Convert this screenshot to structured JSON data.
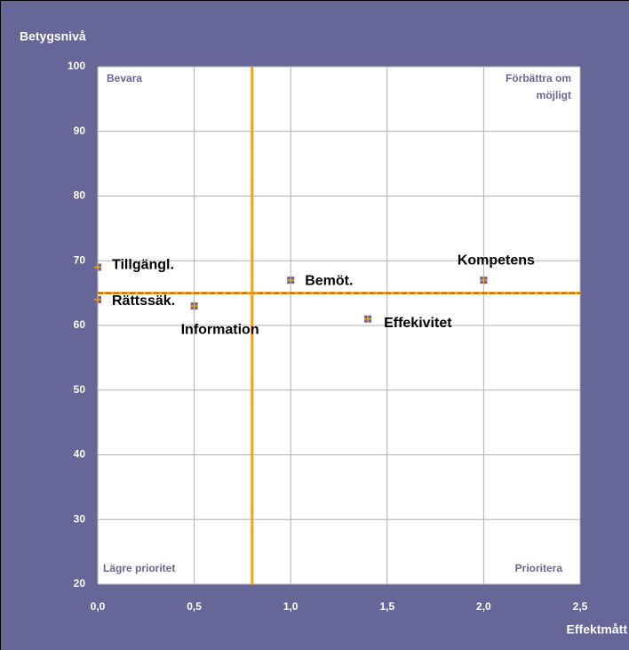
{
  "chart_data": {
    "type": "scatter",
    "y_label": "Betygsnivå",
    "x_label": "Effektmått",
    "x": [
      0.0,
      0.0,
      0.5,
      1.0,
      1.4,
      2.0
    ],
    "values": [
      69,
      64,
      63,
      67,
      61,
      67
    ],
    "point_labels": [
      "Tillgängl.",
      "Rättssäk.",
      "Information",
      "Bemöt.",
      "Effekivitet",
      "Kompetens"
    ],
    "marker_color": "#666699",
    "marker_cross_color": "#f0a030",
    "xlim": [
      0,
      2.5
    ],
    "ylim": [
      20,
      100
    ],
    "xticks": [
      {
        "value": 0,
        "label": "0,0"
      },
      {
        "value": 0.5,
        "label": "0,5"
      },
      {
        "value": 1,
        "label": "1,0"
      },
      {
        "value": 1.5,
        "label": "1,5"
      },
      {
        "value": 2,
        "label": "2,0"
      },
      {
        "value": 2.5,
        "label": "2,5"
      }
    ],
    "yticks": [
      20,
      30,
      40,
      50,
      60,
      70,
      80,
      90,
      100
    ],
    "grid": true,
    "x_reference": 0.8,
    "y_reference": 65,
    "reference_color": "#f5a020",
    "quadrant_labels": {
      "top_left": "Bevara",
      "top_right": [
        "Förbättra om",
        "möjligt"
      ],
      "bottom_left": "Lägre prioritet",
      "bottom_right": "Prioritera"
    }
  }
}
